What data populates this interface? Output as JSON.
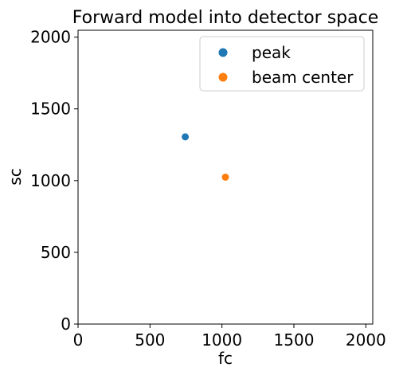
{
  "chart_data": {
    "type": "scatter",
    "title": "Forward model into detector space",
    "xlabel": "fc",
    "ylabel": "sc",
    "xlim": [
      0,
      2048
    ],
    "ylim": [
      0,
      2048
    ],
    "xticks": [
      0,
      500,
      1000,
      1500,
      2000
    ],
    "yticks": [
      0,
      500,
      1000,
      1500,
      2000
    ],
    "grid": false,
    "legend": "upper right",
    "series": [
      {
        "name": "peak",
        "x": [
          745
        ],
        "y": [
          1305
        ],
        "color": "#1f77b4"
      },
      {
        "name": "beam center",
        "x": [
          1024
        ],
        "y": [
          1024
        ],
        "color": "#ff7f0e"
      }
    ]
  }
}
